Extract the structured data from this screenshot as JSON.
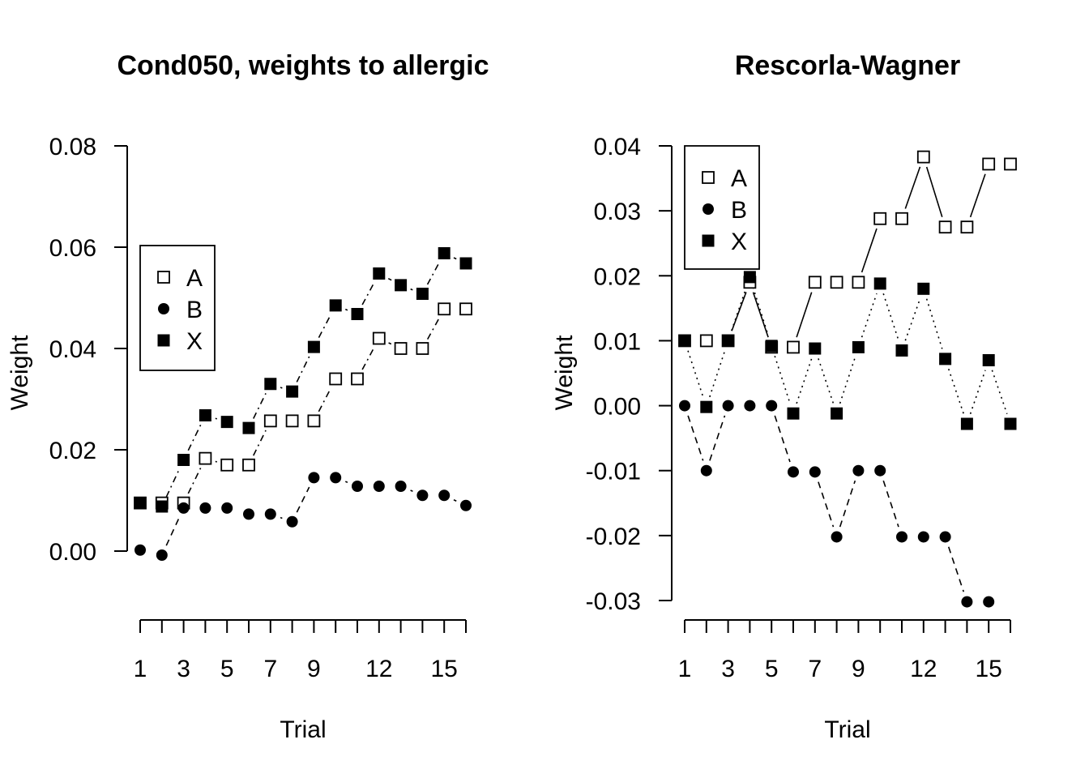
{
  "chart_data": [
    {
      "type": "scatter",
      "title": "Cond050, weights to allergic",
      "xlabel": "Trial",
      "ylabel": "Weight",
      "x": [
        1,
        2,
        3,
        4,
        5,
        6,
        7,
        8,
        9,
        10,
        11,
        12,
        13,
        14,
        15,
        16
      ],
      "x_tick_labels": [
        "1",
        "3",
        "5",
        "7",
        "9",
        "12",
        "15"
      ],
      "x_tick_values": [
        1,
        3,
        5,
        7,
        9,
        12,
        15
      ],
      "xlim": [
        1,
        16
      ],
      "ylim": [
        0,
        0.08
      ],
      "y_ticks": [
        0,
        0.02,
        0.04,
        0.06,
        0.08
      ],
      "y_tick_labels": [
        "0.00",
        "0.02",
        "0.04",
        "0.06",
        "0.08"
      ],
      "legend_position": "left",
      "series": [
        {
          "name": "A",
          "marker": "open-square",
          "line": "dashdot",
          "values": [
            0.0095,
            0.0095,
            0.0095,
            0.0183,
            0.017,
            0.017,
            0.0257,
            0.0257,
            0.0257,
            0.034,
            0.034,
            0.042,
            0.04,
            0.04,
            0.0478,
            0.0478
          ]
        },
        {
          "name": "B",
          "marker": "filled-circle",
          "line": "dashed",
          "values": [
            0.0002,
            -0.0008,
            0.0085,
            0.0085,
            0.0085,
            0.0073,
            0.0073,
            0.0058,
            0.0145,
            0.0145,
            0.0128,
            0.0128,
            0.0128,
            0.011,
            0.011,
            0.009
          ]
        },
        {
          "name": "X",
          "marker": "filled-square",
          "line": "dashdot",
          "values": [
            0.0095,
            0.0088,
            0.018,
            0.0268,
            0.0255,
            0.0243,
            0.033,
            0.0315,
            0.0403,
            0.0485,
            0.0468,
            0.0548,
            0.0525,
            0.0508,
            0.0588,
            0.0568
          ]
        }
      ]
    },
    {
      "type": "scatter",
      "title": "Rescorla-Wagner",
      "xlabel": "Trial",
      "ylabel": "Weight",
      "x": [
        1,
        2,
        3,
        4,
        5,
        6,
        7,
        8,
        9,
        10,
        11,
        12,
        13,
        14,
        15,
        16
      ],
      "x_tick_labels": [
        "1",
        "3",
        "5",
        "7",
        "9",
        "12",
        "15"
      ],
      "x_tick_values": [
        1,
        3,
        5,
        7,
        9,
        12,
        15
      ],
      "xlim": [
        1,
        16
      ],
      "ylim": [
        -0.03,
        0.04
      ],
      "y_ticks": [
        -0.03,
        -0.02,
        -0.01,
        0,
        0.01,
        0.02,
        0.03,
        0.04
      ],
      "y_tick_labels": [
        "-0.03",
        "-0.02",
        "-0.01",
        "0.00",
        "0.01",
        "0.02",
        "0.03",
        "0.04"
      ],
      "legend_position": "top-left",
      "series": [
        {
          "name": "A",
          "marker": "open-square",
          "line": "solid",
          "values": [
            0.01,
            0.01,
            0.01,
            0.019,
            0.009,
            0.009,
            0.019,
            0.019,
            0.019,
            0.0288,
            0.0288,
            0.0383,
            0.0275,
            0.0275,
            0.0372,
            0.0372
          ]
        },
        {
          "name": "B",
          "marker": "filled-circle",
          "line": "dashed",
          "values": [
            0.0,
            -0.01,
            0.0,
            0.0,
            0.0,
            -0.0102,
            -0.0102,
            -0.0202,
            -0.01,
            -0.01,
            -0.0202,
            -0.0202,
            -0.0202,
            -0.0302,
            -0.0302,
            null
          ]
        },
        {
          "name": "X",
          "marker": "filled-square",
          "line": "dotted",
          "values": [
            0.01,
            -0.0002,
            0.01,
            0.0198,
            0.0092,
            -0.0012,
            0.0088,
            -0.0012,
            0.009,
            0.0188,
            0.0085,
            0.018,
            0.0072,
            -0.0028,
            0.007,
            -0.0028
          ]
        }
      ]
    }
  ]
}
